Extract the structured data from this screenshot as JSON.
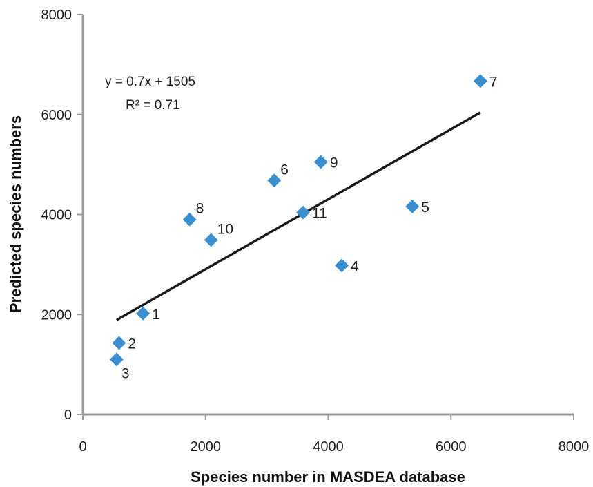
{
  "chart_data": {
    "type": "scatter",
    "title": "",
    "xlabel": "Species number in MASDEA database",
    "ylabel": "Predicted species numbers",
    "xlim": [
      0,
      8000
    ],
    "ylim": [
      0,
      8000
    ],
    "xticks": [
      "0",
      "2000",
      "4000",
      "6000",
      "8000"
    ],
    "yticks": [
      "0",
      "2000",
      "4000",
      "6000",
      "8000"
    ],
    "grid": false,
    "legend": "none",
    "points": [
      {
        "label": "1",
        "x": 980,
        "y": 2020
      },
      {
        "label": "2",
        "x": 590,
        "y": 1430
      },
      {
        "label": "3",
        "x": 550,
        "y": 1100
      },
      {
        "label": "4",
        "x": 4220,
        "y": 2980
      },
      {
        "label": "5",
        "x": 5370,
        "y": 4160
      },
      {
        "label": "6",
        "x": 3120,
        "y": 4680
      },
      {
        "label": "7",
        "x": 6480,
        "y": 6670
      },
      {
        "label": "8",
        "x": 1740,
        "y": 3900
      },
      {
        "label": "9",
        "x": 3880,
        "y": 5050
      },
      {
        "label": "10",
        "x": 2090,
        "y": 3490
      },
      {
        "label": "11",
        "x": 3590,
        "y": 4040
      }
    ],
    "trendline": {
      "slope": 0.7,
      "intercept": 1505,
      "x_range": [
        550,
        6480
      ],
      "equation": "y = 0.7x + 1505",
      "r2_label": "R² = 0.71"
    },
    "colors": {
      "marker": "#3b8fd1",
      "trendline": "#1a1a1a",
      "axis": "#9a9a9a"
    }
  }
}
